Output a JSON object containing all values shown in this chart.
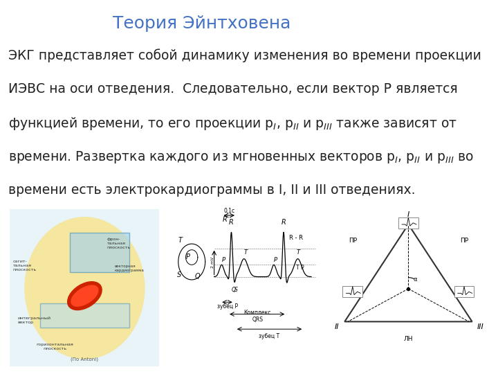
{
  "title": "Теория Эйнтховена",
  "title_color": "#4472C4",
  "title_fontsize": 18,
  "body_lines": [
    "ЭКГ представляет собой динамику изменения во времени проекции",
    "ИЭВС на оси отведения.  Следовательно, если вектор P является",
    "функцией времени, то его проекции p₁, p₂ и p₃ также зависят от",
    "времени. Развертка каждого из мгновенных векторов p₁, p₂ и p₃ во",
    "времени есть электрокардиограммы в I, II и III отведениях."
  ],
  "body_fontsize": 13.5,
  "body_color": "#222222",
  "bg_color": "#ffffff",
  "image_urls": [
    "img1_placeholder",
    "img2_placeholder",
    "img3_placeholder"
  ]
}
